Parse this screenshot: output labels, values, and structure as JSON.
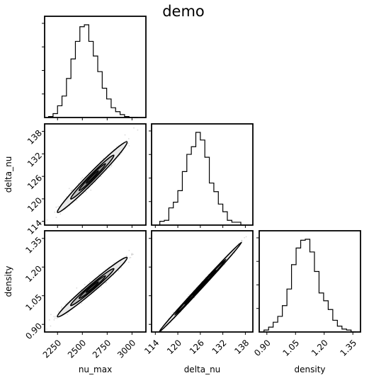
{
  "chart_data": {
    "type": "corner",
    "title": "demo",
    "variables": [
      {
        "name": "nu_max",
        "range": [
          2120,
          3140
        ],
        "ticks": [
          2250,
          2500,
          2750,
          3000
        ]
      },
      {
        "name": "delta_nu",
        "range": [
          113,
          140
        ],
        "ticks": [
          114,
          120,
          126,
          132,
          138
        ]
      },
      {
        "name": "density",
        "range": [
          0.86,
          1.39
        ],
        "ticks": [
          0.9,
          1.05,
          1.2,
          1.35
        ]
      }
    ],
    "tick_labels": {
      "nu_max": [
        "2250",
        "2500",
        "2750",
        "3000"
      ],
      "delta_nu": [
        "114",
        "120",
        "126",
        "132",
        "138"
      ],
      "density": [
        "0.90",
        "1.05",
        "1.20",
        "1.35"
      ]
    },
    "histograms": [
      {
        "variable": "nu_max",
        "bins": [
          2160,
          2205,
          2250,
          2295,
          2340,
          2385,
          2430,
          2475,
          2520,
          2565,
          2610,
          2655,
          2700,
          2745,
          2790,
          2835,
          2880,
          2925,
          2970,
          3015,
          3060
        ],
        "counts": [
          1,
          4,
          12,
          22,
          40,
          60,
          78,
          93,
          95,
          78,
          63,
          47,
          30,
          19,
          10,
          6,
          3,
          1,
          0,
          0
        ]
      },
      {
        "variable": "delta_nu",
        "bins": [
          114,
          115.2,
          116.4,
          117.6,
          118.8,
          120,
          121.2,
          122.4,
          123.6,
          124.8,
          126,
          127.2,
          128.4,
          129.6,
          130.8,
          132,
          133.2,
          134.4,
          135.6,
          136.8,
          138
        ],
        "counts": [
          0,
          4,
          5,
          18,
          24,
          36,
          56,
          74,
          82,
          97,
          89,
          71,
          44,
          35,
          22,
          14,
          5,
          3,
          3,
          0
        ]
      },
      {
        "variable": "density",
        "bins": [
          0.885,
          0.909,
          0.933,
          0.957,
          0.981,
          1.005,
          1.029,
          1.053,
          1.077,
          1.101,
          1.125,
          1.149,
          1.173,
          1.197,
          1.221,
          1.245,
          1.269,
          1.293,
          1.317,
          1.341,
          1.365
        ],
        "counts": [
          2,
          5,
          10,
          16,
          27,
          44,
          69,
          86,
          94,
          95,
          82,
          62,
          40,
          32,
          23,
          12,
          6,
          3,
          2,
          0
        ]
      }
    ],
    "correlations": [
      {
        "x": "nu_max",
        "y": "delta_nu",
        "center": [
          2600,
          125.8
        ],
        "major_end": [
          2950,
          135.2
        ],
        "minor_halfwidth": 1.3
      },
      {
        "x": "nu_max",
        "y": "density",
        "center": [
          2600,
          1.095
        ],
        "major_end": [
          2950,
          1.25
        ],
        "minor_halfwidth": 0.022
      },
      {
        "x": "delta_nu",
        "y": "density",
        "center": [
          126,
          1.095
        ],
        "major_end": [
          137,
          1.33
        ],
        "minor_halfwidth": 0.006
      }
    ],
    "contour_levels": [
      0.5,
      1.0,
      1.5,
      2.0
    ],
    "xlabel_bottom": [
      "nu_max",
      "delta_nu",
      "density"
    ],
    "ylabel_left": [
      "",
      "delta_nu",
      "density"
    ],
    "grid": false,
    "legend": "none"
  },
  "colors": {
    "line": "#000000",
    "fill_light": "#e6e6e6",
    "fill_mid": "#bdbdbd",
    "fill_dark": "#888888",
    "points": "#999999"
  }
}
